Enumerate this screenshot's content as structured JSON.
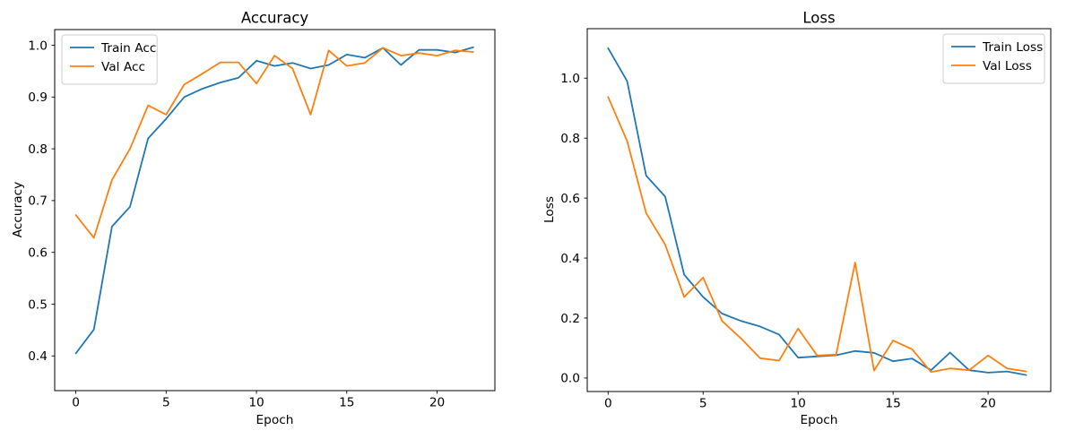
{
  "figure": {
    "background": "#ffffff",
    "text_color": "#000000",
    "spine_color": "#000000",
    "legend_border_color": "#cccccc",
    "legend_background": "#ffffff"
  },
  "chart_data": [
    {
      "type": "line",
      "title": "Accuracy",
      "xlabel": "Epoch",
      "ylabel": "Accuracy",
      "grid": false,
      "legend_position": "upper-left",
      "x": [
        0,
        1,
        2,
        3,
        4,
        5,
        6,
        7,
        8,
        9,
        10,
        11,
        12,
        13,
        14,
        15,
        16,
        17,
        18,
        19,
        20,
        21,
        22
      ],
      "series": [
        {
          "name": "Train Acc",
          "color": "#1f77b4",
          "values": [
            0.405,
            0.451,
            0.65,
            0.688,
            0.82,
            0.858,
            0.9,
            0.916,
            0.928,
            0.937,
            0.97,
            0.96,
            0.966,
            0.955,
            0.962,
            0.982,
            0.976,
            0.995,
            0.962,
            0.991,
            0.991,
            0.986,
            0.996
          ]
        },
        {
          "name": "Val Acc",
          "color": "#ff7f0e",
          "values": [
            0.672,
            0.628,
            0.74,
            0.8,
            0.884,
            0.866,
            0.924,
            0.945,
            0.967,
            0.967,
            0.926,
            0.98,
            0.955,
            0.866,
            0.99,
            0.96,
            0.966,
            0.995,
            0.98,
            0.985,
            0.98,
            0.99,
            0.987
          ]
        }
      ],
      "xlim": [
        -1.17,
        23.2
      ],
      "ylim": [
        0.333,
        1.0303
      ],
      "xticks": [
        0,
        5,
        10,
        15,
        20
      ],
      "xtick_labels": [
        "0",
        "5",
        "10",
        "15",
        "20"
      ],
      "yticks": [
        0.4,
        0.5,
        0.6,
        0.7,
        0.8,
        0.9,
        1.0
      ],
      "ytick_labels": [
        "0.4",
        "0.5",
        "0.6",
        "0.7",
        "0.8",
        "0.9",
        "1.0"
      ]
    },
    {
      "type": "line",
      "title": "Loss",
      "xlabel": "Epoch",
      "ylabel": "Loss",
      "grid": false,
      "legend_position": "upper-right",
      "x": [
        0,
        1,
        2,
        3,
        4,
        5,
        6,
        7,
        8,
        9,
        10,
        11,
        12,
        13,
        14,
        15,
        16,
        17,
        18,
        19,
        20,
        21,
        22
      ],
      "series": [
        {
          "name": "Train Loss",
          "color": "#1f77b4",
          "values": [
            1.1,
            0.99,
            0.675,
            0.605,
            0.345,
            0.27,
            0.215,
            0.19,
            0.172,
            0.145,
            0.068,
            0.072,
            0.076,
            0.09,
            0.084,
            0.056,
            0.065,
            0.026,
            0.085,
            0.026,
            0.018,
            0.022,
            0.01
          ]
        },
        {
          "name": "Val Loss",
          "color": "#ff7f0e",
          "values": [
            0.937,
            0.79,
            0.55,
            0.445,
            0.27,
            0.335,
            0.19,
            0.132,
            0.066,
            0.058,
            0.165,
            0.075,
            0.078,
            0.385,
            0.025,
            0.125,
            0.096,
            0.02,
            0.032,
            0.026,
            0.075,
            0.032,
            0.022
          ]
        }
      ],
      "xlim": [
        -1.1,
        23.3
      ],
      "ylim": [
        -0.045,
        1.165
      ],
      "xticks": [
        0,
        5,
        10,
        15,
        20
      ],
      "xtick_labels": [
        "0",
        "5",
        "10",
        "15",
        "20"
      ],
      "yticks": [
        0.0,
        0.2,
        0.4,
        0.6,
        0.8,
        1.0
      ],
      "ytick_labels": [
        "0.0",
        "0.2",
        "0.4",
        "0.6",
        "0.8",
        "1.0"
      ]
    }
  ]
}
